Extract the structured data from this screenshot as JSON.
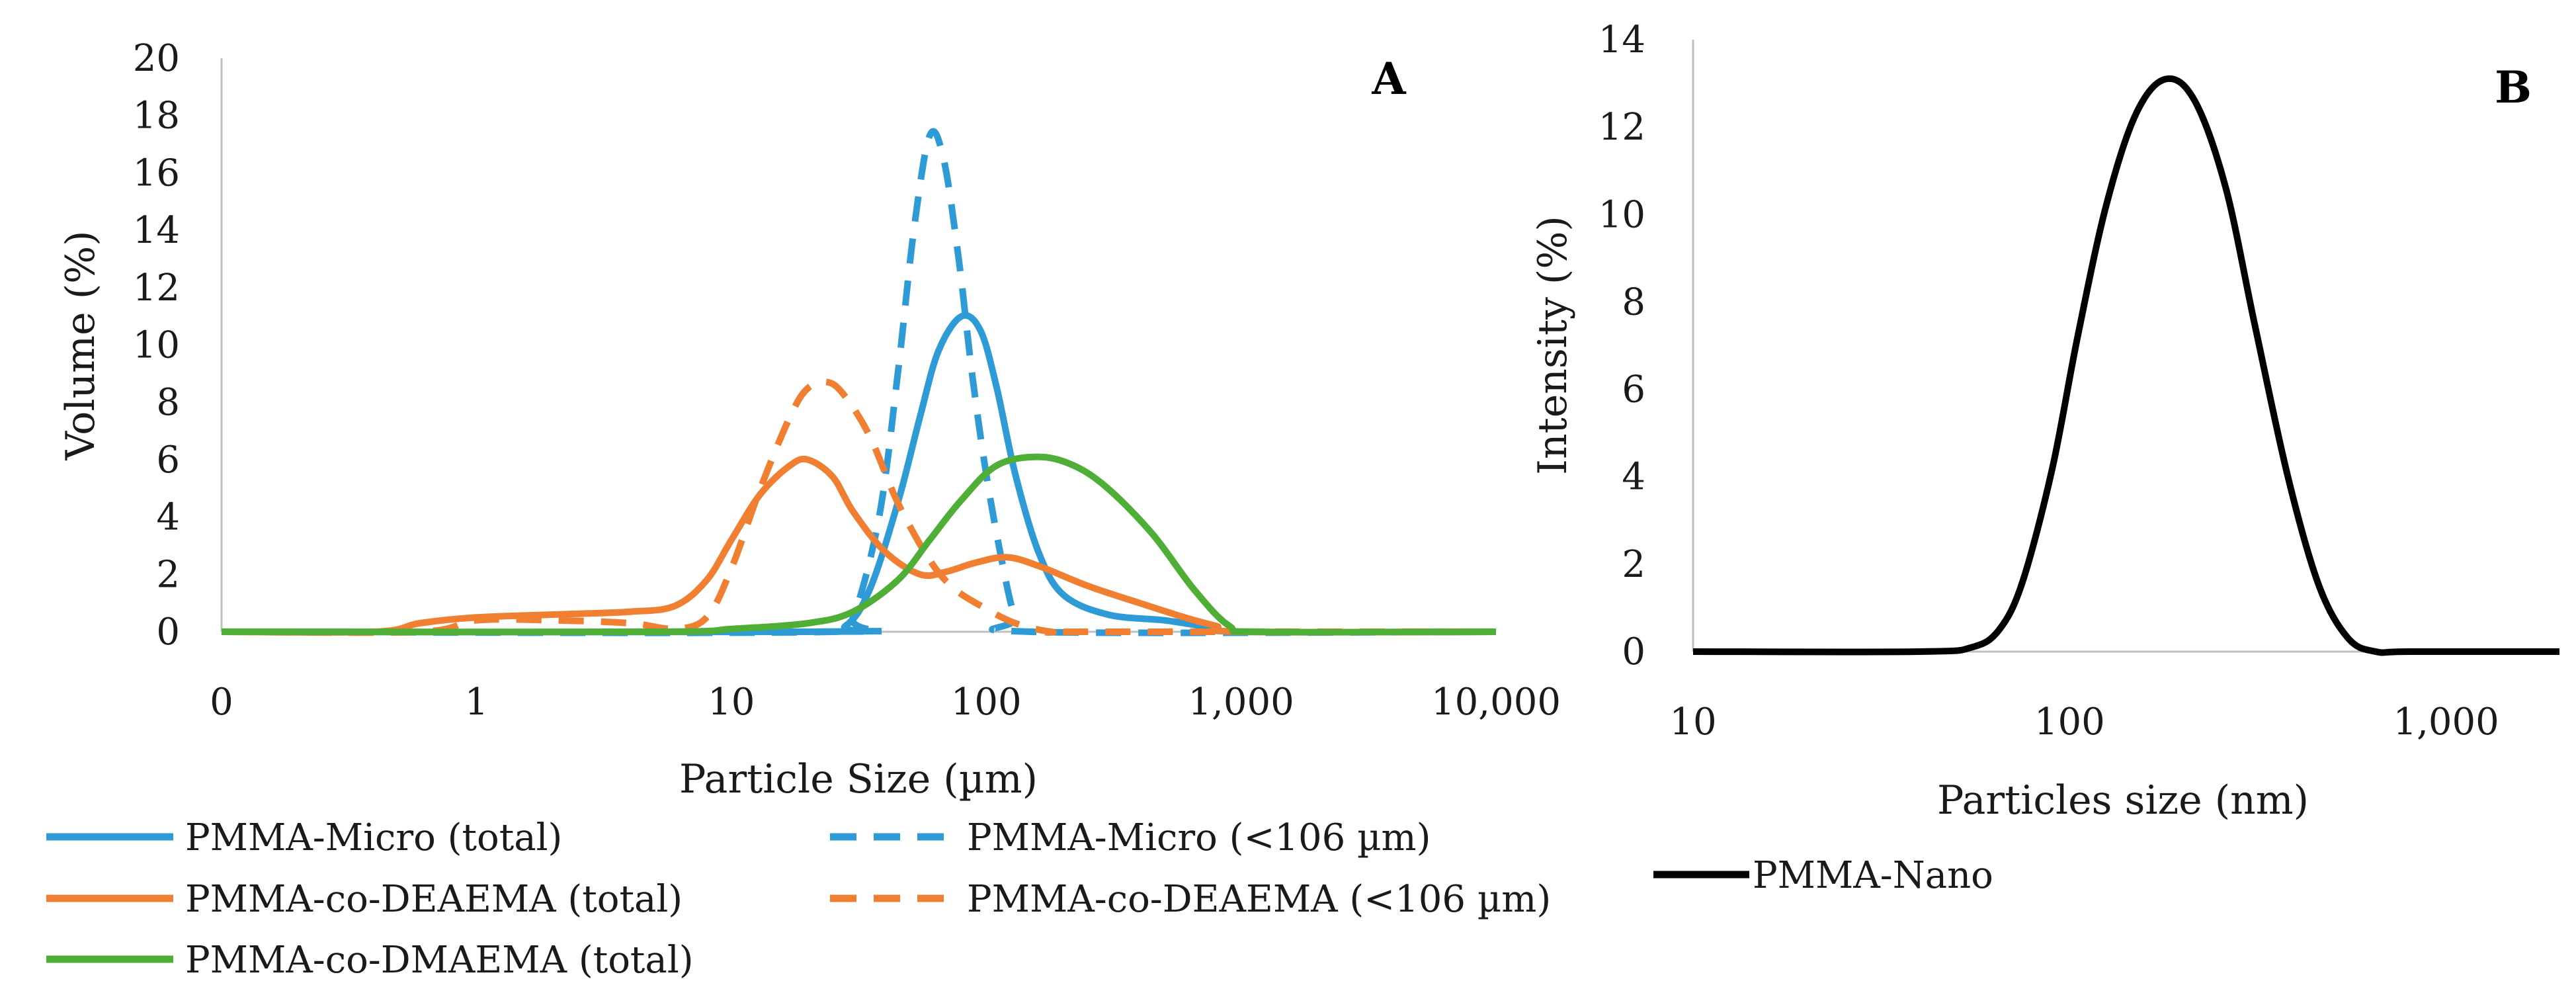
{
  "chart_data": [
    {
      "type": "line",
      "panel_label": "A",
      "xscale": "log",
      "xlabel": "Particle Size (µm)",
      "ylabel": "Volume (%)",
      "x_ticks": [
        "0",
        "1",
        "10",
        "100",
        "1,000",
        "10,000"
      ],
      "y_ticks": [
        "0",
        "2",
        "4",
        "6",
        "8",
        "10",
        "12",
        "14",
        "16",
        "18",
        "20"
      ],
      "ylim": [
        0,
        20
      ],
      "xlim": [
        0.1,
        10000
      ],
      "series": [
        {
          "name": "PMMA-Micro (total)",
          "color": "#2e9bd6",
          "dash": "solid",
          "x": [
            0.1,
            20,
            28,
            35,
            45,
            55,
            65,
            80,
            95,
            110,
            130,
            160,
            200,
            300,
            500,
            700,
            1000,
            10000
          ],
          "y": [
            0,
            0,
            0.2,
            1.5,
            4.5,
            7.5,
            9.8,
            11,
            10.5,
            8.5,
            5.5,
            2.8,
            1.3,
            0.6,
            0.4,
            0.2,
            0,
            0
          ]
        },
        {
          "name": "PMMA-Micro (<106 µm)",
          "color": "#2e9bd6",
          "dash": "dashed",
          "x": [
            0.1,
            25,
            30,
            38,
            45,
            52,
            60,
            68,
            78,
            88,
            100,
            115,
            130,
            150,
            10000
          ],
          "y": [
            0,
            0,
            0.5,
            4,
            9,
            14,
            17.3,
            16.5,
            13,
            9,
            5.5,
            2.5,
            0.5,
            0,
            0
          ]
        },
        {
          "name": "PMMA-co-DEAEMA (total)",
          "color": "#f07f31",
          "dash": "solid",
          "x": [
            0.1,
            0.4,
            0.6,
            1,
            2,
            4,
            6,
            8,
            10,
            13,
            17,
            20,
            25,
            30,
            40,
            55,
            70,
            90,
            120,
            160,
            250,
            400,
            600,
            800,
            1000,
            10000
          ],
          "y": [
            0,
            0,
            0.3,
            0.5,
            0.6,
            0.7,
            0.9,
            1.8,
            3.2,
            4.8,
            5.8,
            6,
            5.4,
            4.2,
            2.8,
            2,
            2.1,
            2.4,
            2.6,
            2.3,
            1.6,
            1,
            0.5,
            0.2,
            0,
            0
          ]
        },
        {
          "name": "PMMA-co-DEAEMA (<106 µm)",
          "color": "#f07f31",
          "dash": "dashed",
          "x": [
            0.1,
            0.6,
            1,
            2,
            4,
            6,
            8,
            10,
            13,
            17,
            20,
            24,
            28,
            35,
            45,
            60,
            75,
            100,
            130,
            180,
            250,
            10000
          ],
          "y": [
            0,
            0,
            0.4,
            0.4,
            0.3,
            0.1,
            0.5,
            2.2,
            5,
            7.5,
            8.5,
            8.7,
            8.2,
            6.8,
            4.5,
            2.5,
            1.5,
            0.8,
            0.3,
            0,
            0,
            0
          ]
        },
        {
          "name": "PMMA-co-DMAEMA (total)",
          "color": "#4fae35",
          "dash": "solid",
          "x": [
            0.1,
            5,
            10,
            20,
            30,
            45,
            60,
            80,
            110,
            160,
            220,
            300,
            450,
            650,
            900,
            1200,
            10000
          ],
          "y": [
            0,
            0,
            0.1,
            0.3,
            0.7,
            1.8,
            3.2,
            4.6,
            5.8,
            6.1,
            5.8,
            5,
            3.4,
            1.5,
            0.2,
            0,
            0
          ]
        }
      ],
      "legend": [
        "PMMA-Micro (total)",
        "PMMA-Micro (<106 µm)",
        "PMMA-co-DEAEMA (total)",
        "PMMA-co-DEAEMA (<106 µm)",
        "PMMA-co-DMAEMA (total)"
      ]
    },
    {
      "type": "line",
      "panel_label": "B",
      "xscale": "log",
      "xlabel": "Particles size (nm)",
      "ylabel": "Intensity (%)",
      "x_ticks": [
        "10",
        "100",
        "1,000"
      ],
      "y_ticks": [
        "0",
        "2",
        "4",
        "6",
        "8",
        "10",
        "12",
        "14"
      ],
      "ylim": [
        0,
        14
      ],
      "xlim": [
        10,
        2000
      ],
      "series": [
        {
          "name": "PMMA-Nano",
          "color": "#000000",
          "dash": "solid",
          "x": [
            10,
            40,
            55,
            65,
            75,
            90,
            105,
            125,
            150,
            180,
            215,
            260,
            310,
            380,
            460,
            550,
            650,
            800,
            2000
          ],
          "y": [
            0,
            0,
            0.1,
            0.5,
            1.6,
            4.2,
            7.2,
            10.2,
            12.3,
            13.1,
            12.6,
            10.6,
            7.5,
            4,
            1.5,
            0.3,
            0,
            0,
            0
          ]
        }
      ],
      "legend": [
        "PMMA-Nano"
      ]
    }
  ]
}
